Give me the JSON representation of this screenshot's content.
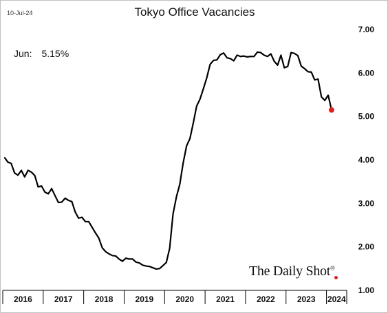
{
  "header": {
    "date_stamp": "10-Jul-24",
    "title": "Tokyo Office Vacancies"
  },
  "annotation": {
    "label": "Jun:",
    "value": "5.15%"
  },
  "branding": {
    "name": "The Daily Shot",
    "mark": "®"
  },
  "colors": {
    "line": "#000000",
    "marker": "#e02020",
    "axis": "#000000"
  },
  "chart_data": {
    "type": "line",
    "title": "Tokyo Office Vacancies",
    "xlabel": "",
    "ylabel": "",
    "x_start": "2016-01",
    "frequency": "monthly",
    "x_ticks": [
      "2016",
      "2017",
      "2018",
      "2019",
      "2020",
      "2021",
      "2022",
      "2023",
      "2024"
    ],
    "y_ticks": [
      "1.00",
      "2.00",
      "3.00",
      "4.00",
      "5.00",
      "6.00",
      "7.00"
    ],
    "ylim": [
      1.0,
      7.0
    ],
    "y_axis_side": "right",
    "grid": false,
    "last_point_marker": true,
    "series": [
      {
        "values": [
          4.06,
          3.95,
          3.92,
          3.7,
          3.65,
          3.76,
          3.61,
          3.76,
          3.72,
          3.64,
          3.38,
          3.4,
          3.26,
          3.22,
          3.34,
          3.18,
          3.02,
          3.03,
          3.12,
          3.07,
          3.04,
          2.8,
          2.66,
          2.68,
          2.58,
          2.58,
          2.45,
          2.32,
          2.2,
          1.98,
          1.89,
          1.84,
          1.8,
          1.79,
          1.72,
          1.67,
          1.74,
          1.72,
          1.72,
          1.65,
          1.63,
          1.58,
          1.56,
          1.55,
          1.52,
          1.49,
          1.5,
          1.57,
          1.64,
          1.97,
          2.76,
          3.15,
          3.44,
          3.93,
          4.32,
          4.49,
          4.85,
          5.24,
          5.4,
          5.64,
          5.89,
          6.2,
          6.29,
          6.3,
          6.42,
          6.46,
          6.35,
          6.33,
          6.28,
          6.41,
          6.38,
          6.39,
          6.37,
          6.38,
          6.38,
          6.48,
          6.47,
          6.41,
          6.38,
          6.44,
          6.27,
          6.18,
          6.41,
          6.12,
          6.15,
          6.47,
          6.45,
          6.4,
          6.16,
          6.1,
          6.03,
          6.02,
          5.84,
          5.86,
          5.45,
          5.37,
          5.49,
          5.15
        ]
      }
    ]
  }
}
